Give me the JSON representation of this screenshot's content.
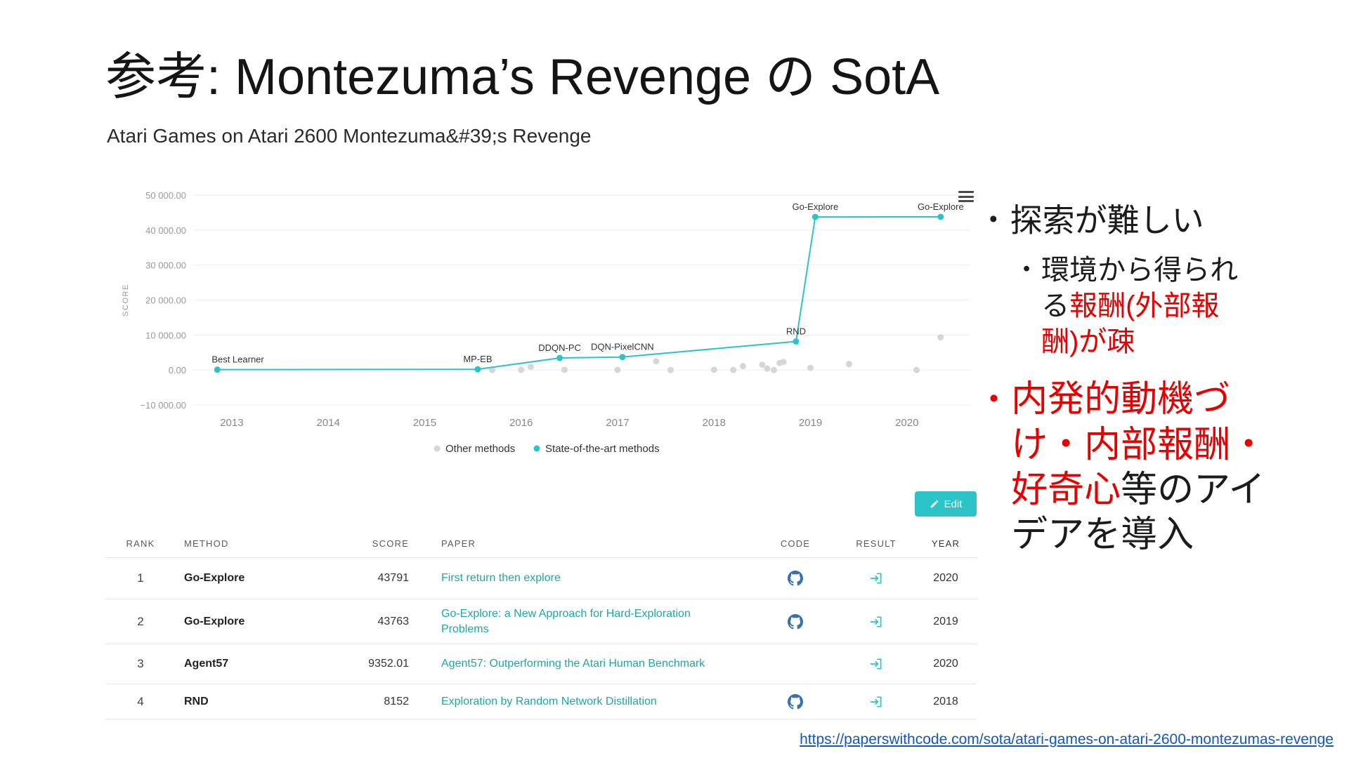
{
  "slide": {
    "title": "参考: Montezuma’s Revenge の SotA",
    "source_url": "https://paperswithcode.com/sota/atari-games-on-atari-2600-montezumas-revenge"
  },
  "embed": {
    "heading": "Atari Games on Atari 2600 Montezuma&#39;s Revenge",
    "edit_button": {
      "label": "Edit",
      "icon": "edit-pencil-icon"
    },
    "menu_icon": "hamburger-menu-icon"
  },
  "colors": {
    "accent_teal": "#2cc3c8",
    "paper_link_teal": "#1ba8a5",
    "other_gray": "#d6d6d6",
    "note_red": "#e60000",
    "url_blue": "#1155cc",
    "github_blue": "#3572b0"
  },
  "chart_data": {
    "type": "line",
    "title": "",
    "xlabel": "",
    "ylabel": "SCORE",
    "x_range": [
      2012.6,
      2020.65
    ],
    "y_range": [
      -10000,
      50000
    ],
    "grid": true,
    "legend_position": "bottom",
    "y_ticks": [
      {
        "value": 50000,
        "label": "50 000.00"
      },
      {
        "value": 40000,
        "label": "40 000.00"
      },
      {
        "value": 30000,
        "label": "30 000.00"
      },
      {
        "value": 20000,
        "label": "20 000.00"
      },
      {
        "value": 10000,
        "label": "10 000.00"
      },
      {
        "value": 0,
        "label": "0.00"
      },
      {
        "value": -10000,
        "label": "−10 000.00"
      }
    ],
    "x_ticks": [
      2013,
      2014,
      2015,
      2016,
      2017,
      2018,
      2019,
      2020
    ],
    "legend": [
      {
        "label": "Other methods",
        "color": "#d6d6d6"
      },
      {
        "label": "State-of-the-art methods",
        "color": "#2cc3c8"
      }
    ],
    "sota_series": {
      "name": "State-of-the-art methods",
      "color": "#2cc3c8",
      "points": [
        {
          "x": 2012.85,
          "y": 100,
          "label": "Best Learner"
        },
        {
          "x": 2015.55,
          "y": 200,
          "label": "MP-EB"
        },
        {
          "x": 2016.4,
          "y": 3439,
          "label": "DDQN-PC"
        },
        {
          "x": 2017.05,
          "y": 3705,
          "label": "DQN-PixelCNN"
        },
        {
          "x": 2018.85,
          "y": 8152,
          "label": "RND"
        },
        {
          "x": 2019.05,
          "y": 43763,
          "label": "Go-Explore"
        },
        {
          "x": 2020.35,
          "y": 43791,
          "label": "Go-Explore"
        }
      ]
    },
    "other_series": {
      "name": "Other methods",
      "color": "#d6d6d6",
      "points": [
        {
          "x": 2015.7,
          "y": 0
        },
        {
          "x": 2016.0,
          "y": 50
        },
        {
          "x": 2016.1,
          "y": 900
        },
        {
          "x": 2016.45,
          "y": 60
        },
        {
          "x": 2017.0,
          "y": 40
        },
        {
          "x": 2017.4,
          "y": 2500
        },
        {
          "x": 2017.55,
          "y": 0
        },
        {
          "x": 2018.0,
          "y": 60
        },
        {
          "x": 2018.2,
          "y": 0
        },
        {
          "x": 2018.3,
          "y": 1100
        },
        {
          "x": 2018.5,
          "y": 1500
        },
        {
          "x": 2018.55,
          "y": 400
        },
        {
          "x": 2018.62,
          "y": 0
        },
        {
          "x": 2018.68,
          "y": 2000
        },
        {
          "x": 2018.72,
          "y": 2300
        },
        {
          "x": 2019.0,
          "y": 600
        },
        {
          "x": 2019.4,
          "y": 1700
        },
        {
          "x": 2020.1,
          "y": 0
        },
        {
          "x": 2020.35,
          "y": 9352
        }
      ]
    }
  },
  "table": {
    "headers": [
      "RANK",
      "METHOD",
      "SCORE",
      "PAPER",
      "CODE",
      "RESULT",
      "YEAR"
    ],
    "rows": [
      {
        "rank": "1",
        "method": "Go-Explore",
        "score": "43791",
        "paper": "First return then explore",
        "code": true,
        "result": true,
        "year": "2020"
      },
      {
        "rank": "2",
        "method": "Go-Explore",
        "score": "43763",
        "paper": "Go-Explore: a New Approach for Hard-Exploration Problems",
        "code": true,
        "result": true,
        "year": "2019"
      },
      {
        "rank": "3",
        "method": "Agent57",
        "score": "9352.01",
        "paper": "Agent57: Outperforming the Atari Human Benchmark",
        "code": false,
        "result": true,
        "year": "2020"
      },
      {
        "rank": "4",
        "method": "RND",
        "score": "8152",
        "paper": "Exploration by Random Network Distillation",
        "code": true,
        "result": true,
        "year": "2018"
      }
    ]
  },
  "notes": {
    "bullet1": {
      "marker": "•",
      "marker_color": "black",
      "lines": [
        [
          {
            "t": "探索が難しい",
            "c": "black"
          }
        ]
      ]
    },
    "sub1": {
      "marker": "•",
      "marker_color": "black",
      "lines": [
        [
          {
            "t": "環境から得られ",
            "c": "black"
          }
        ],
        [
          {
            "t": "る",
            "c": "black"
          },
          {
            "t": "報酬(外部報",
            "c": "red"
          }
        ],
        [
          {
            "t": "酬)が疎",
            "c": "red"
          }
        ]
      ]
    },
    "bullet2": {
      "marker": "•",
      "marker_color": "red",
      "lines": [
        [
          {
            "t": "内発的動機づ",
            "c": "red"
          }
        ],
        [
          {
            "t": "け・内部報酬・",
            "c": "red"
          }
        ],
        [
          {
            "t": "好奇心",
            "c": "red"
          },
          {
            "t": "等のアイ",
            "c": "black"
          }
        ],
        [
          {
            "t": "デアを導入",
            "c": "black"
          }
        ]
      ]
    }
  }
}
